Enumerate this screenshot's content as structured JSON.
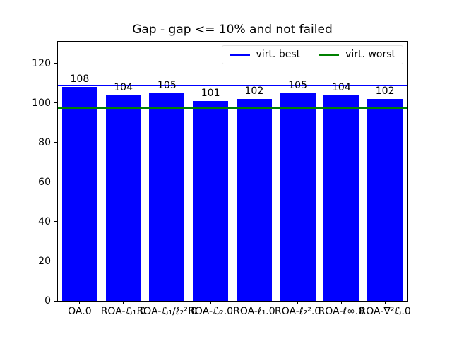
{
  "chart_data": {
    "type": "bar",
    "title": "Gap - gap <= 10% and not failed",
    "categories": [
      "OA.0",
      "ROA-ℒ₁.0",
      "ROA-ℒ₁/ℓ₂².0",
      "ROA-ℒ₂.0",
      "ROA-ℓ₁.0",
      "ROA-ℓ₂².0",
      "ROA-ℓ∞.0",
      "ROA-∇²ℒ.0"
    ],
    "values": [
      108,
      104,
      105,
      101,
      102,
      105,
      104,
      102
    ],
    "bar_labels": [
      "108",
      "104",
      "105",
      "101",
      "102",
      "105",
      "104",
      "102"
    ],
    "bar_color": "#0000ff",
    "hlines": [
      {
        "label": "virt. best",
        "value": 109,
        "color": "#0000ff"
      },
      {
        "label": "virt. worst",
        "value": 97.5,
        "color": "#008000"
      }
    ],
    "legend": {
      "position": "upper right",
      "entries": [
        {
          "label": "virt. best",
          "color": "#0000ff"
        },
        {
          "label": "virt. worst",
          "color": "#008000"
        }
      ]
    },
    "xlabel": "",
    "ylabel": "",
    "ylim": [
      0,
      131
    ],
    "yticks": [
      0,
      20,
      40,
      60,
      80,
      100,
      120
    ],
    "grid": false,
    "text_color": "#000000",
    "spine_color": "#000000"
  }
}
